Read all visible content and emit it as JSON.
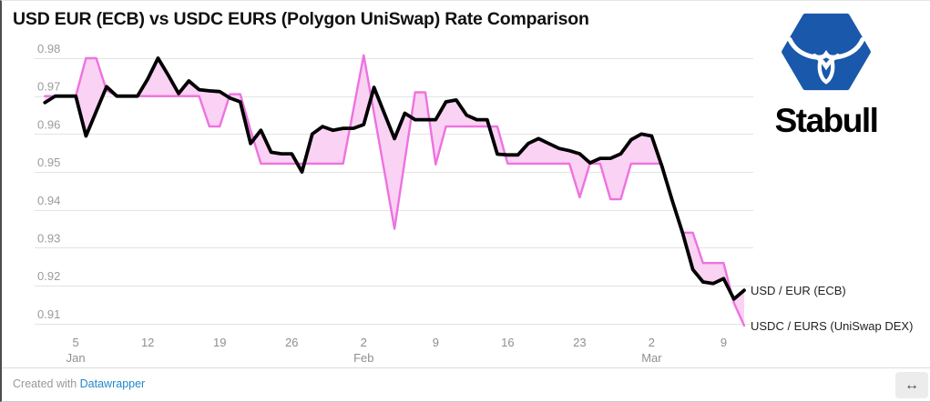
{
  "header": {
    "title": "USD EUR (ECB) vs USDC EURS (Polygon UniSwap) Rate Comparison"
  },
  "logo": {
    "brand": "Stabull",
    "hex_color": "#1958ab"
  },
  "footer": {
    "prefix": "Created with ",
    "link_label": "Datawrapper"
  },
  "window": {
    "resize_icon": "↔"
  },
  "chart_data": {
    "type": "line",
    "title": "USD EUR (ECB) vs USDC EURS (Polygon UniSwap) Rate Comparison",
    "grid": "horizontal",
    "legend_position": "end-of-line-labels",
    "ylim": [
      0.905,
      0.984
    ],
    "yticks": [
      0.98,
      0.97,
      0.96,
      0.95,
      0.94,
      0.93,
      0.92,
      0.91
    ],
    "xticks": [
      {
        "d": "Jan 5",
        "label": "5",
        "month": "Jan"
      },
      {
        "d": "Jan 12",
        "label": "12"
      },
      {
        "d": "Jan 19",
        "label": "19"
      },
      {
        "d": "Jan 26",
        "label": "26"
      },
      {
        "d": "Feb 2",
        "label": "2",
        "month": "Feb"
      },
      {
        "d": "Feb 9",
        "label": "9"
      },
      {
        "d": "Feb 16",
        "label": "16"
      },
      {
        "d": "Feb 23",
        "label": "23"
      },
      {
        "d": "Mar 2",
        "label": "2",
        "month": "Mar"
      },
      {
        "d": "Mar 9",
        "label": "9"
      }
    ],
    "colors": {
      "usd_eur": "#000000",
      "usdc_eurs_line": "#ee72e0",
      "band_fill": "#fad2f3"
    },
    "series": [
      {
        "name": "USD / EUR (ECB)",
        "points": [
          [
            "Jan 2",
            0.9683
          ],
          [
            "Jan 3",
            0.97
          ],
          [
            "Jan 4",
            0.97
          ],
          [
            "Jan 5",
            0.97
          ],
          [
            "Jan 6",
            0.9595
          ],
          [
            "Jan 7",
            0.966
          ],
          [
            "Jan 8",
            0.9725
          ],
          [
            "Jan 9",
            0.97
          ],
          [
            "Jan 10",
            0.97
          ],
          [
            "Jan 11",
            0.97
          ],
          [
            "Jan 12",
            0.9745
          ],
          [
            "Jan 13",
            0.98
          ],
          [
            "Jan 14",
            0.9755
          ],
          [
            "Jan 15",
            0.9707
          ],
          [
            "Jan 16",
            0.974
          ],
          [
            "Jan 17",
            0.9717
          ],
          [
            "Jan 18",
            0.9714
          ],
          [
            "Jan 19",
            0.9712
          ],
          [
            "Jan 20",
            0.9695
          ],
          [
            "Jan 21",
            0.9685
          ],
          [
            "Jan 22",
            0.9575
          ],
          [
            "Jan 23",
            0.961
          ],
          [
            "Jan 24",
            0.9552
          ],
          [
            "Jan 25",
            0.9548
          ],
          [
            "Jan 26",
            0.9548
          ],
          [
            "Jan 27",
            0.95
          ],
          [
            "Jan 28",
            0.96
          ],
          [
            "Jan 29",
            0.962
          ],
          [
            "Jan 30",
            0.961
          ],
          [
            "Jan 31",
            0.9615
          ],
          [
            "Feb 1",
            0.9615
          ],
          [
            "Feb 2",
            0.9625
          ],
          [
            "Feb 3",
            0.9723
          ],
          [
            "Feb 4",
            0.9655
          ],
          [
            "Feb 5",
            0.9588
          ],
          [
            "Feb 6",
            0.9655
          ],
          [
            "Feb 7",
            0.9638
          ],
          [
            "Feb 8",
            0.9638
          ],
          [
            "Feb 9",
            0.9638
          ],
          [
            "Feb 10",
            0.9685
          ],
          [
            "Feb 11",
            0.969
          ],
          [
            "Feb 12",
            0.965
          ],
          [
            "Feb 13",
            0.9638
          ],
          [
            "Feb 14",
            0.9638
          ],
          [
            "Feb 15",
            0.9547
          ],
          [
            "Feb 16",
            0.9545
          ],
          [
            "Feb 17",
            0.9545
          ],
          [
            "Feb 18",
            0.9575
          ],
          [
            "Feb 19",
            0.9588
          ],
          [
            "Feb 20",
            0.9575
          ],
          [
            "Feb 21",
            0.9562
          ],
          [
            "Feb 22",
            0.9556
          ],
          [
            "Feb 23",
            0.9548
          ],
          [
            "Feb 24",
            0.9524
          ],
          [
            "Feb 25",
            0.9536
          ],
          [
            "Feb 26",
            0.9536
          ],
          [
            "Feb 27",
            0.9548
          ],
          [
            "Feb 28",
            0.9585
          ],
          [
            "Mar 1",
            0.96
          ],
          [
            "Mar 2",
            0.9595
          ],
          [
            "Mar 3",
            0.9515
          ],
          [
            "Mar 4",
            0.9425
          ],
          [
            "Mar 5",
            0.934
          ],
          [
            "Mar 6",
            0.9243
          ],
          [
            "Mar 7",
            0.921
          ],
          [
            "Mar 8",
            0.9206
          ],
          [
            "Mar 9",
            0.9219
          ],
          [
            "Mar 10",
            0.9165
          ],
          [
            "Mar 11",
            0.9188
          ]
        ]
      },
      {
        "name": "USDC / EURS (UniSwap DEX)",
        "points": [
          [
            "Jan 2",
            0.97
          ],
          [
            "Jan 3",
            0.97
          ],
          [
            "Jan 4",
            0.97
          ],
          [
            "Jan 5",
            0.97
          ],
          [
            "Jan 6",
            0.98
          ],
          [
            "Jan 7",
            0.98
          ],
          [
            "Jan 8",
            0.9715
          ],
          [
            "Jan 9",
            0.97
          ],
          [
            "Jan 10",
            0.97
          ],
          [
            "Jan 11",
            0.97
          ],
          [
            "Jan 12",
            0.97
          ],
          [
            "Jan 13",
            0.97
          ],
          [
            "Jan 14",
            0.97
          ],
          [
            "Jan 15",
            0.97
          ],
          [
            "Jan 16",
            0.97
          ],
          [
            "Jan 17",
            0.97
          ],
          [
            "Jan 18",
            0.962
          ],
          [
            "Jan 19",
            0.962
          ],
          [
            "Jan 20",
            0.9705
          ],
          [
            "Jan 21",
            0.9705
          ],
          [
            "Jan 22",
            0.961
          ],
          [
            "Jan 23",
            0.9522
          ],
          [
            "Jan 24",
            0.9522
          ],
          [
            "Jan 25",
            0.9522
          ],
          [
            "Jan 26",
            0.9522
          ],
          [
            "Jan 27",
            0.9522
          ],
          [
            "Jan 28",
            0.9522
          ],
          [
            "Jan 29",
            0.9522
          ],
          [
            "Jan 30",
            0.9522
          ],
          [
            "Jan 31",
            0.9522
          ],
          [
            "Feb 1",
            0.9665
          ],
          [
            "Feb 2",
            0.9808
          ],
          [
            "Feb 3",
            0.9655
          ],
          [
            "Feb 4",
            0.9503
          ],
          [
            "Feb 5",
            0.935
          ],
          [
            "Feb 6",
            0.953
          ],
          [
            "Feb 7",
            0.971
          ],
          [
            "Feb 8",
            0.971
          ],
          [
            "Feb 9",
            0.952
          ],
          [
            "Feb 10",
            0.962
          ],
          [
            "Feb 11",
            0.962
          ],
          [
            "Feb 12",
            0.962
          ],
          [
            "Feb 13",
            0.962
          ],
          [
            "Feb 14",
            0.962
          ],
          [
            "Feb 15",
            0.962
          ],
          [
            "Feb 16",
            0.9522
          ],
          [
            "Feb 17",
            0.9522
          ],
          [
            "Feb 18",
            0.9522
          ],
          [
            "Feb 19",
            0.9522
          ],
          [
            "Feb 20",
            0.9522
          ],
          [
            "Feb 21",
            0.9522
          ],
          [
            "Feb 22",
            0.9522
          ],
          [
            "Feb 23",
            0.9433
          ],
          [
            "Feb 24",
            0.9522
          ],
          [
            "Feb 25",
            0.9522
          ],
          [
            "Feb 26",
            0.9428
          ],
          [
            "Feb 27",
            0.9428
          ],
          [
            "Feb 28",
            0.9522
          ],
          [
            "Mar 1",
            0.9522
          ],
          [
            "Mar 2",
            0.9522
          ],
          [
            "Mar 3",
            0.9522
          ],
          [
            "Mar 4",
            0.9425
          ],
          [
            "Mar 5",
            0.934
          ],
          [
            "Mar 6",
            0.934
          ],
          [
            "Mar 7",
            0.926
          ],
          [
            "Mar 8",
            0.926
          ],
          [
            "Mar 9",
            0.926
          ],
          [
            "Mar 10",
            0.9155
          ],
          [
            "Mar 11",
            0.9095
          ]
        ]
      }
    ]
  }
}
